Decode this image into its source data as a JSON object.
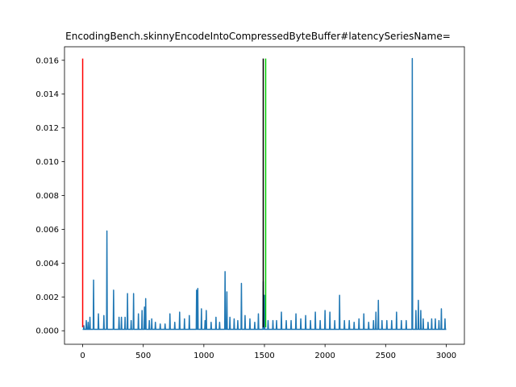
{
  "chart_data": {
    "type": "line",
    "title": "EncodingBench.skinnyEncodeIntoCompressedByteBuffer#latencySeriesName=",
    "xlabel": "",
    "ylabel": "",
    "xlim": [
      -150,
      3150
    ],
    "ylim": [
      -0.0008,
      0.0168
    ],
    "x_ticks": [
      0,
      500,
      1000,
      1500,
      2000,
      2500,
      3000
    ],
    "x_tick_labels": [
      "0",
      "500",
      "1000",
      "1500",
      "2000",
      "2500",
      "3000"
    ],
    "y_ticks": [
      0.0,
      0.002,
      0.004,
      0.006,
      0.008,
      0.01,
      0.012,
      0.014,
      0.016
    ],
    "y_tick_labels": [
      "0.000",
      "0.002",
      "0.004",
      "0.006",
      "0.008",
      "0.010",
      "0.012",
      "0.014",
      "0.016"
    ],
    "grid": false,
    "legend": "none",
    "baseline": 8e-05,
    "series": [
      {
        "color": "#1f77b4",
        "x_range": [
          0,
          3000
        ],
        "spikes": [
          [
            10,
            0.0003
          ],
          [
            30,
            0.0006
          ],
          [
            45,
            0.0005
          ],
          [
            60,
            0.0008
          ],
          [
            90,
            0.003
          ],
          [
            130,
            0.001
          ],
          [
            175,
            0.0009
          ],
          [
            200,
            0.0059
          ],
          [
            255,
            0.0024
          ],
          [
            300,
            0.0008
          ],
          [
            320,
            0.0008
          ],
          [
            350,
            0.0008
          ],
          [
            370,
            0.0022
          ],
          [
            400,
            0.0006
          ],
          [
            420,
            0.0022
          ],
          [
            460,
            0.001
          ],
          [
            490,
            0.0012
          ],
          [
            510,
            0.0014
          ],
          [
            520,
            0.0019
          ],
          [
            550,
            0.0006
          ],
          [
            570,
            0.0007
          ],
          [
            600,
            0.0005
          ],
          [
            640,
            0.0004
          ],
          [
            680,
            0.0004
          ],
          [
            720,
            0.001
          ],
          [
            760,
            0.0005
          ],
          [
            800,
            0.0011
          ],
          [
            840,
            0.0007
          ],
          [
            880,
            0.0009
          ],
          [
            940,
            0.0024
          ],
          [
            950,
            0.0025
          ],
          [
            980,
            0.0013
          ],
          [
            1010,
            0.0006
          ],
          [
            1020,
            0.0012
          ],
          [
            1060,
            0.0005
          ],
          [
            1100,
            0.0008
          ],
          [
            1130,
            0.0005
          ],
          [
            1175,
            0.0035
          ],
          [
            1190,
            0.0023
          ],
          [
            1215,
            0.0008
          ],
          [
            1250,
            0.0007
          ],
          [
            1280,
            0.0006
          ],
          [
            1310,
            0.0028
          ],
          [
            1340,
            0.0009
          ],
          [
            1380,
            0.0007
          ],
          [
            1420,
            0.0005
          ],
          [
            1450,
            0.001
          ],
          [
            1490,
            0.0029
          ],
          [
            1500,
            0.0021
          ],
          [
            1530,
            0.0006
          ],
          [
            1570,
            0.0006
          ],
          [
            1600,
            0.0006
          ],
          [
            1640,
            0.0011
          ],
          [
            1680,
            0.0006
          ],
          [
            1720,
            0.0006
          ],
          [
            1760,
            0.001
          ],
          [
            1800,
            0.0007
          ],
          [
            1840,
            0.0009
          ],
          [
            1880,
            0.0006
          ],
          [
            1920,
            0.0011
          ],
          [
            1960,
            0.0006
          ],
          [
            2000,
            0.0012
          ],
          [
            2040,
            0.0011
          ],
          [
            2080,
            0.0006
          ],
          [
            2120,
            0.0021
          ],
          [
            2160,
            0.0006
          ],
          [
            2200,
            0.0006
          ],
          [
            2240,
            0.0005
          ],
          [
            2280,
            0.0007
          ],
          [
            2320,
            0.001
          ],
          [
            2360,
            0.0005
          ],
          [
            2400,
            0.0006
          ],
          [
            2420,
            0.0011
          ],
          [
            2440,
            0.0018
          ],
          [
            2470,
            0.0006
          ],
          [
            2510,
            0.0006
          ],
          [
            2550,
            0.0006
          ],
          [
            2590,
            0.0011
          ],
          [
            2630,
            0.0006
          ],
          [
            2670,
            0.0006
          ],
          [
            2720,
            0.0161
          ],
          [
            2750,
            0.0012
          ],
          [
            2770,
            0.0018
          ],
          [
            2790,
            0.0012
          ],
          [
            2810,
            0.0007
          ],
          [
            2850,
            0.0005
          ],
          [
            2880,
            0.0007
          ],
          [
            2910,
            0.0007
          ],
          [
            2940,
            0.0006
          ],
          [
            2960,
            0.0013
          ],
          [
            2990,
            0.0007
          ]
        ]
      }
    ],
    "vertical_lines": [
      {
        "x": 0,
        "color": "#ff0000",
        "y_range": [
          0.0002,
          0.0161
        ]
      },
      {
        "x": 1490,
        "color": "#000000",
        "y_range": [
          0.0002,
          0.0161
        ]
      },
      {
        "x": 1510,
        "color": "#00cc00",
        "y_range": [
          0.0002,
          0.0161
        ]
      }
    ]
  }
}
